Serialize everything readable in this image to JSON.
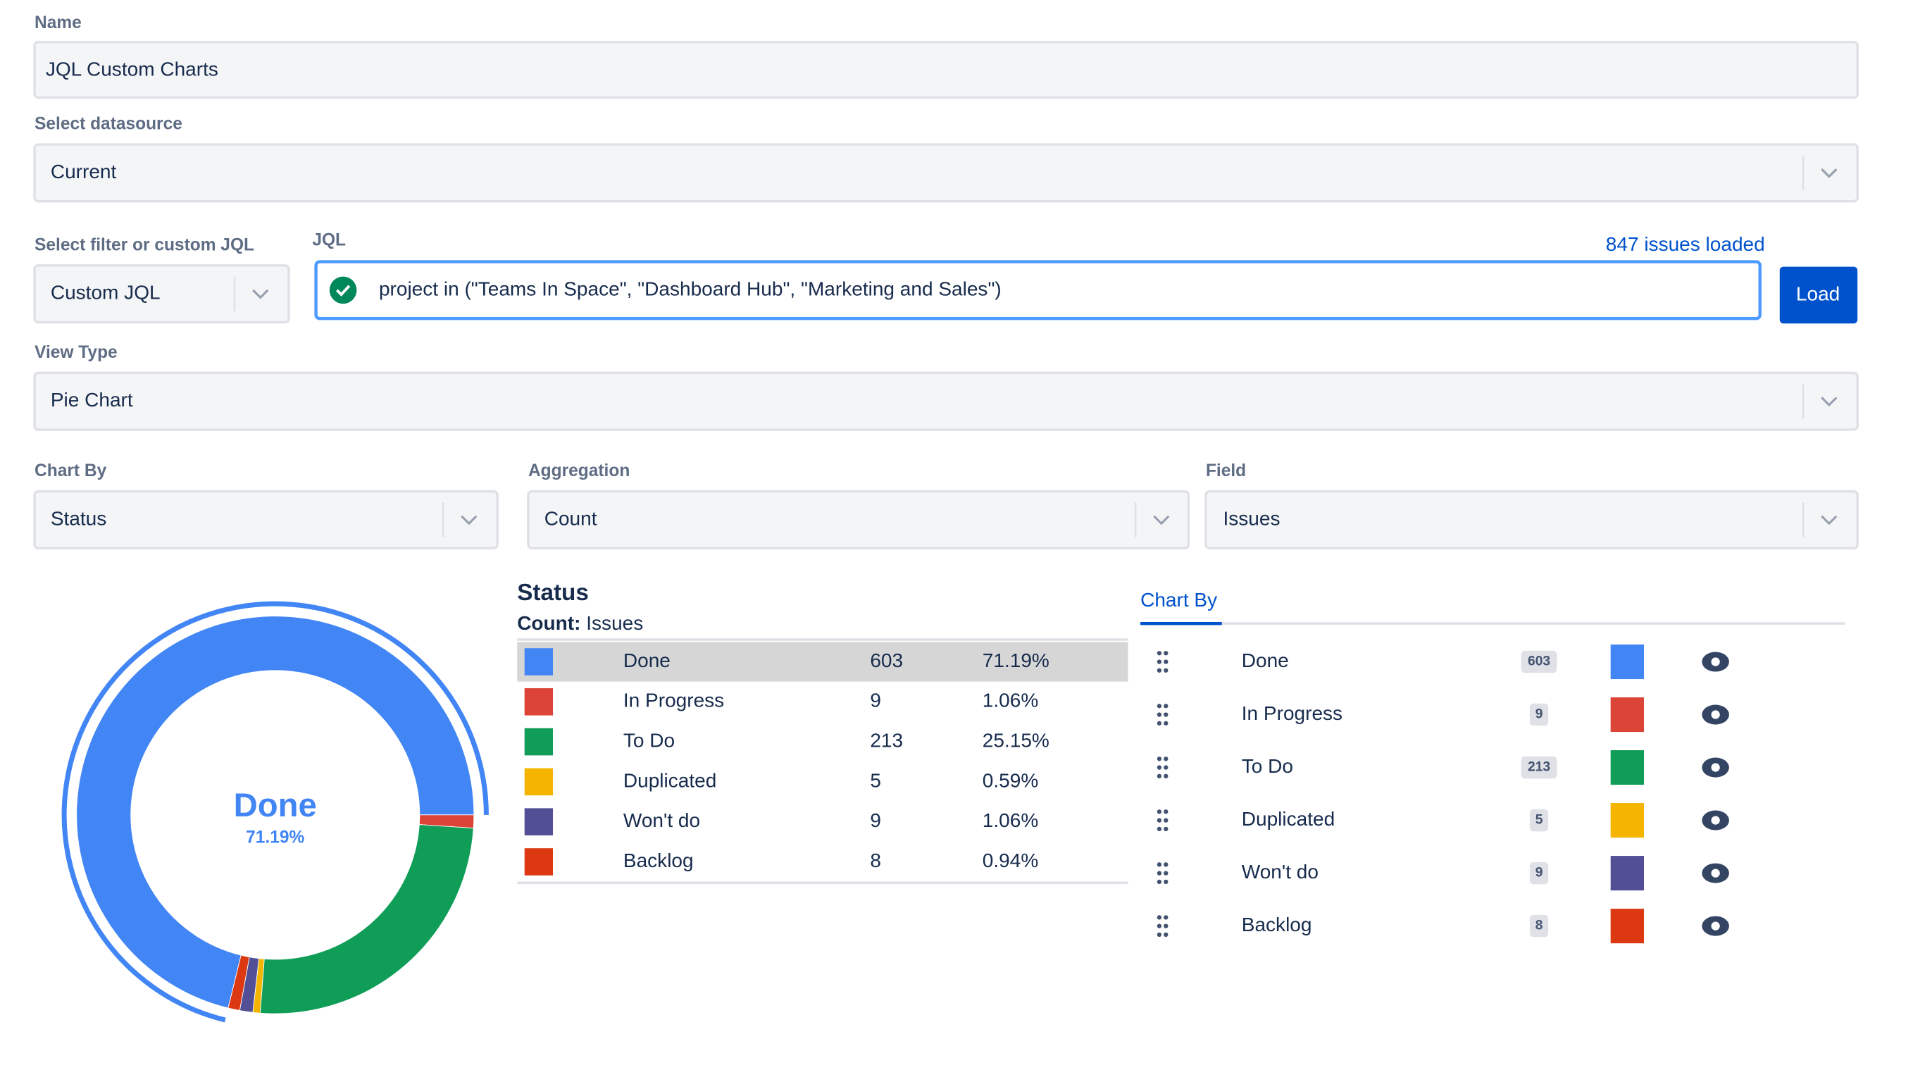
{
  "form": {
    "name_label": "Name",
    "name_value": "JQL Custom Charts",
    "datasource_label": "Select datasource",
    "datasource_value": "Current",
    "filter_label": "Select filter or custom JQL",
    "filter_value": "Custom JQL",
    "jql_label": "JQL",
    "issues_loaded": "847 issues loaded",
    "jql_value": "project in (\"Teams In Space\", \"Dashboard Hub\", \"Marketing and Sales\")",
    "load_button": "Load",
    "view_type_label": "View Type",
    "view_type_value": "Pie Chart",
    "chart_by_label": "Chart By",
    "chart_by_value": "Status",
    "aggregation_label": "Aggregation",
    "aggregation_value": "Count",
    "field_label": "Field",
    "field_value": "Issues"
  },
  "chart_data": {
    "type": "pie",
    "title": "Status",
    "subtitle_key": "Count:",
    "subtitle_value": "Issues",
    "categories": [
      "Done",
      "In Progress",
      "To Do",
      "Duplicated",
      "Won't do",
      "Backlog"
    ],
    "values": [
      603,
      9,
      213,
      5,
      9,
      8
    ],
    "percent_labels": [
      "71.19%",
      "1.06%",
      "25.15%",
      "0.59%",
      "1.06%",
      "0.94%"
    ],
    "colors": [
      "#4285f4",
      "#db4437",
      "#0f9d58",
      "#f4b400",
      "#524f97",
      "#dc3912"
    ],
    "legend_tab": "Chart By"
  }
}
